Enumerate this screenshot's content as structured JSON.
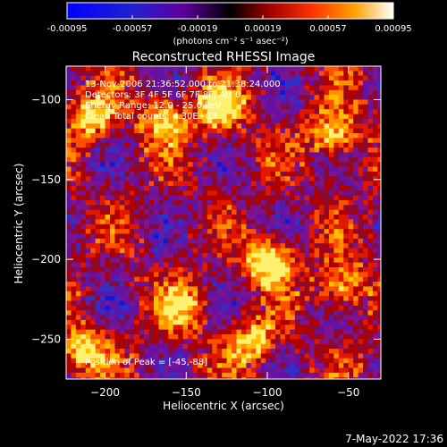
{
  "chart_data": {
    "type": "heatmap",
    "title": "Reconstructed RHESSI Image",
    "xlabel": "Heliocentric X (arcsec)",
    "ylabel": "Heliocentric Y (arcsec)",
    "xlim": [
      -224,
      -30
    ],
    "ylim": [
      -275,
      -79
    ],
    "x_ticks": [
      -200,
      -150,
      -100,
      -50
    ],
    "y_ticks": [
      -100,
      -150,
      -200,
      -250
    ],
    "colorbar": {
      "ticks": [
        "-0.00095",
        "-0.00057",
        "-0.00019",
        "0.00019",
        "0.00057",
        "0.00095"
      ],
      "range": [
        -0.00095,
        0.00095
      ],
      "units": "(photons cm⁻² s⁻¹ asec⁻²)"
    },
    "annotations": [
      "13-Nov-2006 21:36:52.000 to 21:38:24.000",
      "Detectors: 3F 4F 5F 6F 7F 8F, Att 0",
      "Energy Range: 12.0 - 25.0 keV",
      "Clean    Total counts: 4.30E+03"
    ],
    "peak_label": "Position of Peak = [-45,-88]",
    "peak": [
      -45,
      -88
    ],
    "bright_sources": [
      {
        "x": -100,
        "y": -200,
        "level": 1.0
      },
      {
        "x": -130,
        "y": -105,
        "level": 0.85
      },
      {
        "x": -60,
        "y": -120,
        "level": 0.8
      },
      {
        "x": -165,
        "y": -110,
        "level": 0.8
      },
      {
        "x": -210,
        "y": -110,
        "level": 0.75
      },
      {
        "x": -55,
        "y": -215,
        "level": 0.75
      },
      {
        "x": -215,
        "y": -255,
        "level": 0.8
      },
      {
        "x": -110,
        "y": -250,
        "level": 0.7
      },
      {
        "x": -155,
        "y": -230,
        "level": 0.65
      }
    ]
  },
  "footer": {
    "timestamp": "7-May-2022 17:36"
  }
}
